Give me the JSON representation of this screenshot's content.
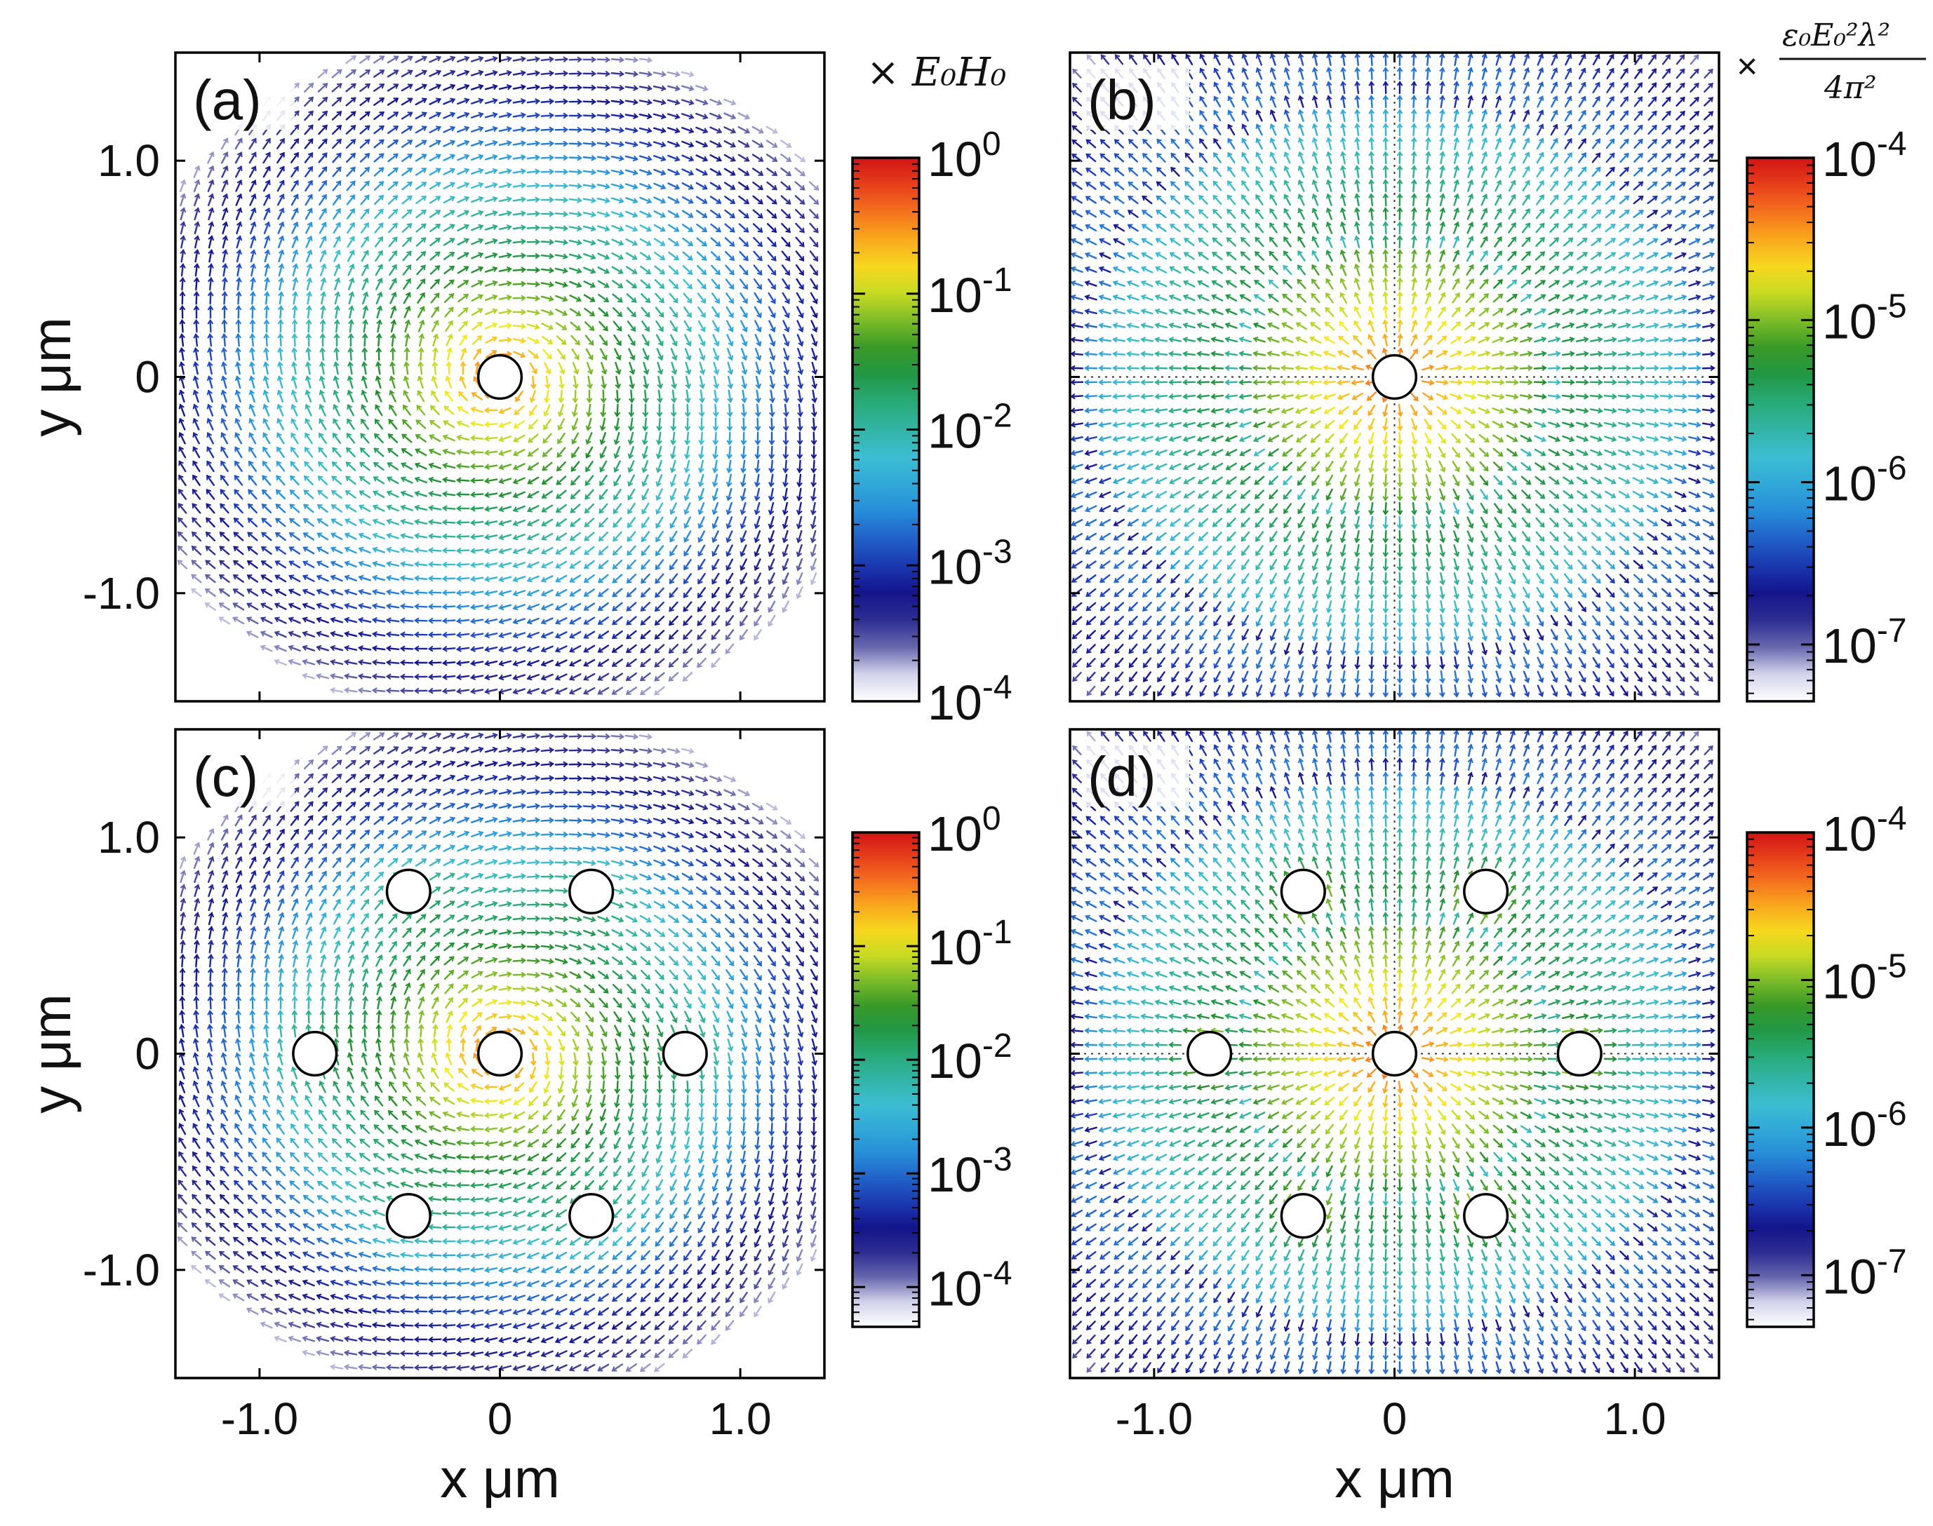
{
  "figure": {
    "colorbar_unit_top": "× E₀H₀",
    "colorbar_unit_right_prefix": "×",
    "colorbar_unit_right_num": "ε₀E₀²λ²",
    "colorbar_unit_right_den": "4π²"
  },
  "chart_data": [
    {
      "id": "a",
      "type": "heatmap",
      "panel_label": "(a)",
      "field": "vortex",
      "title": "",
      "xlabel": "",
      "ylabel": "y μm",
      "xlim": [
        -1.35,
        1.35
      ],
      "ylim": [
        -1.5,
        1.5
      ],
      "yticks": [
        1.0,
        0,
        -1.0
      ],
      "ytick_labels": [
        "1.0",
        "0",
        "-1.0"
      ],
      "particles": [
        [
          0,
          0
        ]
      ],
      "particle_radius_um": 0.09,
      "colorbar": {
        "ticks": [
          "10^0",
          "10^-1",
          "10^-2",
          "10^-3",
          "10^-4"
        ],
        "range_log10": [
          -4,
          0
        ]
      }
    },
    {
      "id": "b",
      "type": "heatmap",
      "panel_label": "(b)",
      "field": "radial",
      "title": "",
      "xlabel": "",
      "ylabel": "",
      "xlim": [
        -1.35,
        1.35
      ],
      "ylim": [
        -1.5,
        1.5
      ],
      "particles": [
        [
          0,
          0
        ]
      ],
      "particle_radius_um": 0.09,
      "colorbar": {
        "ticks": [
          "10^-4",
          "10^-5",
          "10^-6",
          "10^-7"
        ],
        "range_log10": [
          -7.35,
          -4
        ]
      }
    },
    {
      "id": "c",
      "type": "heatmap",
      "panel_label": "(c)",
      "field": "vortex",
      "title": "",
      "xlabel": "x μm",
      "ylabel": "y μm",
      "xlim": [
        -1.35,
        1.35
      ],
      "ylim": [
        -1.5,
        1.5
      ],
      "xticks": [
        -1.0,
        0,
        1.0
      ],
      "xtick_labels": [
        "-1.0",
        "0",
        "1.0"
      ],
      "yticks": [
        1.0,
        0,
        -1.0
      ],
      "ytick_labels": [
        "1.0",
        "0",
        "-1.0"
      ],
      "particles": [
        [
          0,
          0
        ],
        [
          -0.38,
          0.75
        ],
        [
          0.38,
          0.75
        ],
        [
          -0.77,
          0
        ],
        [
          0.77,
          0
        ],
        [
          -0.38,
          -0.75
        ],
        [
          0.38,
          -0.75
        ]
      ],
      "particle_radius_um": 0.09,
      "colorbar": {
        "ticks": [
          "10^0",
          "10^-1",
          "10^-2",
          "10^-3",
          "10^-4"
        ],
        "range_log10": [
          -4.35,
          0
        ]
      }
    },
    {
      "id": "d",
      "type": "heatmap",
      "panel_label": "(d)",
      "field": "radial",
      "title": "",
      "xlabel": "x μm",
      "ylabel": "",
      "xlim": [
        -1.35,
        1.35
      ],
      "ylim": [
        -1.5,
        1.5
      ],
      "xticks": [
        -1.0,
        0,
        1.0
      ],
      "xtick_labels": [
        "-1.0",
        "0",
        "1.0"
      ],
      "particles": [
        [
          0,
          0
        ],
        [
          -0.38,
          0.75
        ],
        [
          0.38,
          0.75
        ],
        [
          -0.77,
          0
        ],
        [
          0.77,
          0
        ],
        [
          -0.38,
          -0.75
        ],
        [
          0.38,
          -0.75
        ]
      ],
      "particle_radius_um": 0.09,
      "colorbar": {
        "ticks": [
          "10^-4",
          "10^-5",
          "10^-6",
          "10^-7"
        ],
        "range_log10": [
          -7.35,
          -4
        ]
      }
    }
  ]
}
